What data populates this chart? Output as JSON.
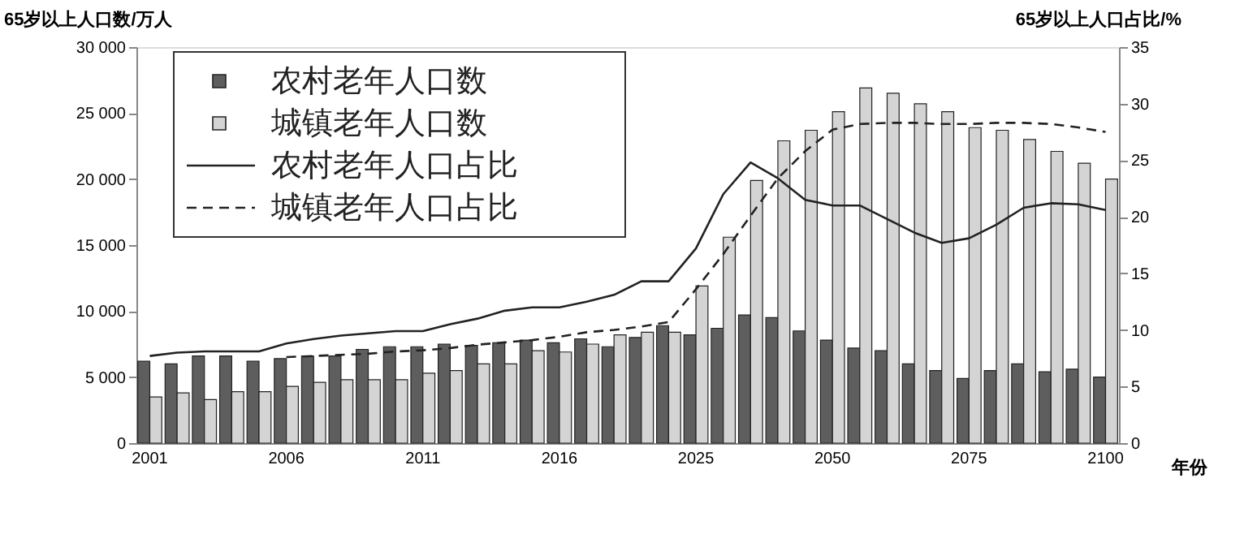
{
  "chart_data": {
    "type": "bar",
    "ylabel": "65岁以上人口数/万人",
    "y2label": "65岁以上人口占比/%",
    "xlabel": "年份",
    "categories": [
      "2001",
      null,
      null,
      null,
      null,
      "2006",
      null,
      null,
      null,
      null,
      "2011",
      null,
      null,
      null,
      null,
      "2016",
      null,
      null,
      null,
      null,
      "2025",
      null,
      null,
      null,
      null,
      "2050",
      null,
      null,
      null,
      null,
      "2075",
      null,
      null,
      null,
      null,
      "2100"
    ],
    "series": [
      {
        "name": "农村老年人口数",
        "color": "#5e5e5e",
        "values": [
          6200,
          6000,
          6600,
          6600,
          6200,
          6400,
          6600,
          6600,
          7100,
          7300,
          7300,
          7500,
          7400,
          7600,
          7800,
          7600,
          7900,
          7300,
          8000,
          8900,
          8200,
          8700,
          9700,
          9500,
          8500,
          7800,
          7200,
          7000,
          6000,
          5500,
          4900,
          5500,
          6000,
          5400,
          5600,
          5000
        ]
      },
      {
        "name": "城镇老年人口数",
        "color": "#d4d4d4",
        "values": [
          3500,
          3800,
          3300,
          3900,
          3900,
          4300,
          4600,
          4800,
          4800,
          4800,
          5300,
          5500,
          6000,
          6000,
          7000,
          6900,
          7500,
          8200,
          8400,
          8400,
          11900,
          15600,
          19900,
          22900,
          23700,
          25100,
          26900,
          26500,
          25700,
          25100,
          23900,
          23700,
          23000,
          22100,
          21200,
          20000
        ]
      },
      {
        "name": "农村老年人口占比",
        "type": "line",
        "axis": "y2",
        "line_style": "solid",
        "color": "#222222",
        "values": [
          7.7,
          8.0,
          8.1,
          8.1,
          8.1,
          8.8,
          9.2,
          9.5,
          9.7,
          9.9,
          9.9,
          10.5,
          11.0,
          11.7,
          12.0,
          12.0,
          12.5,
          13.1,
          14.3,
          14.3,
          17.2,
          22.0,
          24.8,
          23.4,
          21.5,
          21.0,
          21.0,
          19.8,
          18.6,
          17.7,
          18.1,
          19.3,
          20.8,
          21.2,
          21.1,
          20.6
        ]
      },
      {
        "name": "城镇老年人口占比",
        "type": "line",
        "axis": "y2",
        "line_style": "dashed",
        "color": "#222222",
        "values": [
          null,
          null,
          null,
          null,
          null,
          7.6,
          7.7,
          7.8,
          7.9,
          8.1,
          8.2,
          8.4,
          8.7,
          8.9,
          9.1,
          9.4,
          9.8,
          10.0,
          10.3,
          10.7,
          13.6,
          16.7,
          20.1,
          23.4,
          25.8,
          27.7,
          28.2,
          28.3,
          28.3,
          28.2,
          28.2,
          28.3,
          28.3,
          28.2,
          27.9,
          27.5
        ]
      }
    ],
    "ylim": [
      0,
      30000
    ],
    "yticks": [
      0,
      {
        "value": 5000,
        "label": "5 000"
      },
      {
        "value": 10000,
        "label": "10 000"
      },
      {
        "value": 15000,
        "label": "15 000"
      },
      {
        "value": 20000,
        "label": "20 000"
      },
      {
        "value": 25000,
        "label": "25 000"
      },
      {
        "value": 30000,
        "label": "30 000"
      }
    ],
    "y2lim": [
      0,
      35
    ],
    "y2ticks": [
      0,
      5,
      10,
      15,
      20,
      25,
      30,
      35
    ],
    "legend": "top left",
    "grid": false,
    "marker": "none"
  }
}
